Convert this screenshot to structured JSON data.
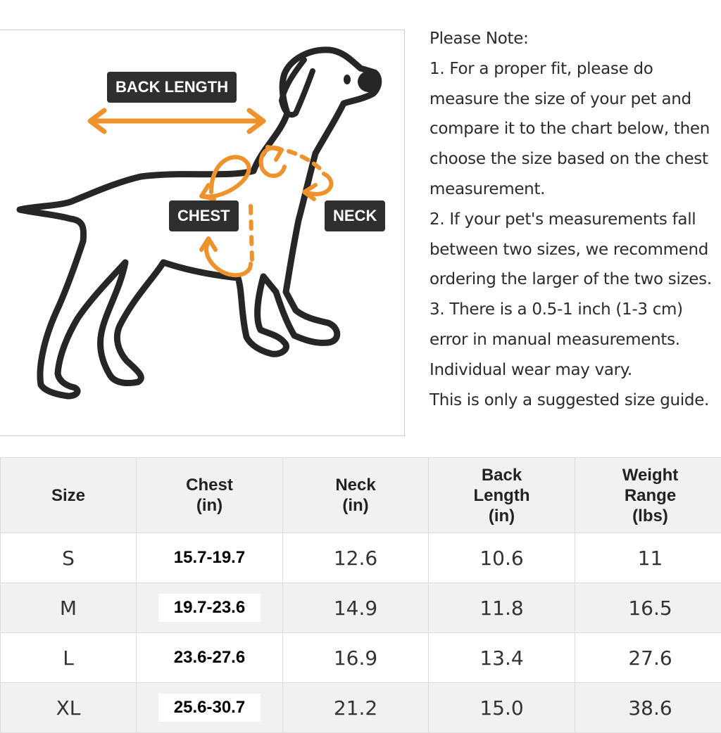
{
  "diagram": {
    "labels": {
      "back_length": "BACK LENGTH",
      "chest": "CHEST",
      "neck": "NECK"
    },
    "colors": {
      "arrow": "#f0922b",
      "outline": "#262626",
      "label_bg": "#2f2f2f"
    }
  },
  "notes": [
    "Please Note:",
    "1. For a proper fit, please do",
    "measure the size of your pet and",
    "compare it to the chart below, then",
    "choose the size based on the chest",
    "measurement.",
    "2. If your pet's measurements fall",
    "between two sizes, we recommend",
    "ordering the larger of the two sizes.",
    "3. There is a 0.5-1 inch (1-3 cm)",
    "error in manual measurements.",
    "Individual wear may vary.",
    "This is only a suggested size guide."
  ],
  "table": {
    "headers": [
      [
        "Size"
      ],
      [
        "Chest",
        "(in)"
      ],
      [
        "Neck",
        "(in)"
      ],
      [
        "Back",
        "Length",
        "(in)"
      ],
      [
        "Weight",
        "Range",
        "(lbs)"
      ]
    ],
    "rows": [
      {
        "size": "S",
        "chest": "15.7-19.7",
        "neck": "12.6",
        "back": "10.6",
        "weight": "11"
      },
      {
        "size": "M",
        "chest": "19.7-23.6",
        "neck": "14.9",
        "back": "11.8",
        "weight": "16.5"
      },
      {
        "size": "L",
        "chest": "23.6-27.6",
        "neck": "16.9",
        "back": "13.4",
        "weight": "27.6"
      },
      {
        "size": "XL",
        "chest": "25.6-30.7",
        "neck": "21.2",
        "back": "15.0",
        "weight": "38.6"
      }
    ]
  }
}
